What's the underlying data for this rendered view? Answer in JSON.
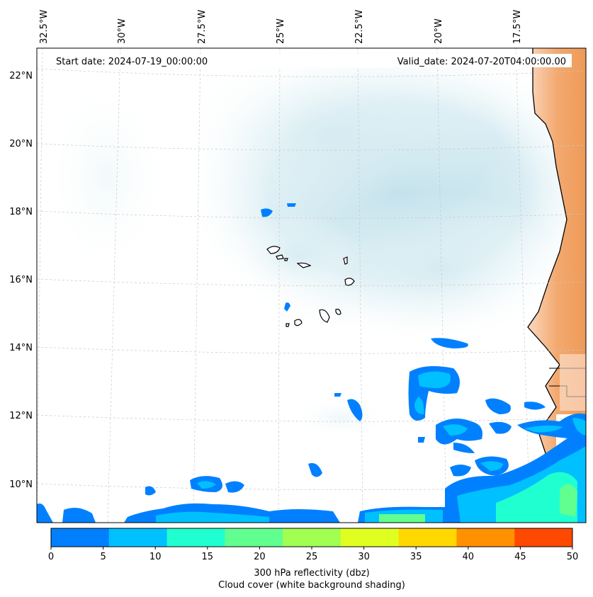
{
  "map": {
    "start_date": "Start date: 2024-07-19_00:00:00",
    "valid_date": "Valid_date: 2024-07-20T04:00:00.00",
    "lon_labels": [
      "32.5°W",
      "30°W",
      "27.5°W",
      "25°W",
      "22.5°W",
      "20°W",
      "17.5°W"
    ],
    "lat_labels": [
      "22°N",
      "20°N",
      "18°N",
      "16°N",
      "14°N",
      "12°N",
      "10°N"
    ]
  },
  "colorbar": {
    "ticks": [
      "0",
      "5",
      "10",
      "15",
      "20",
      "25",
      "30",
      "35",
      "40",
      "45",
      "50"
    ],
    "colors": [
      "#0080ff",
      "#00c0ff",
      "#20ffd0",
      "#60ff90",
      "#a0ff50",
      "#e0ff20",
      "#ffd800",
      "#ff9000",
      "#ff4800"
    ],
    "label": "300 hPa reflectivity (dbz)",
    "sublabel": "Cloud cover (white background shading)"
  },
  "colors": {
    "cloud": "#b8dde8",
    "land_warm": "#f0a060",
    "coast": "#000000",
    "grid": "#cccccc"
  }
}
